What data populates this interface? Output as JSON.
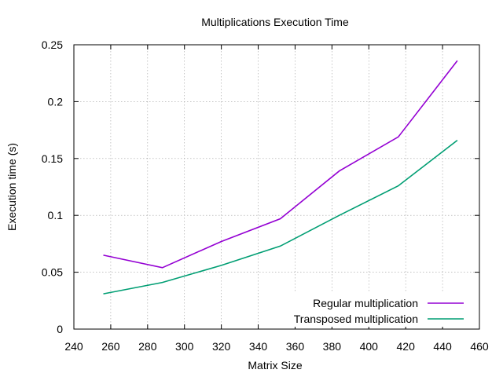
{
  "chart_data": {
    "type": "line",
    "title": "Multiplications Execution Time",
    "xlabel": "Matrix Size",
    "ylabel": "Execution time (s)",
    "xlim": [
      240,
      460
    ],
    "ylim": [
      0,
      0.25
    ],
    "xticks": [
      "240",
      "260",
      "280",
      "300",
      "320",
      "340",
      "360",
      "380",
      "400",
      "420",
      "440",
      "460"
    ],
    "yticks": [
      "0",
      "0.05",
      "0.1",
      "0.15",
      "0.2",
      "0.25"
    ],
    "grid": true,
    "legend_position": "bottom-right",
    "series": [
      {
        "name": "Regular multiplication",
        "color": "#9400d3",
        "x": [
          256,
          288,
          320,
          352,
          384,
          416,
          448
        ],
        "y": [
          0.065,
          0.054,
          0.077,
          0.097,
          0.139,
          0.169,
          0.236
        ]
      },
      {
        "name": "Transposed multiplication",
        "color": "#009e73",
        "x": [
          256,
          288,
          320,
          352,
          384,
          416,
          448
        ],
        "y": [
          0.031,
          0.041,
          0.056,
          0.073,
          0.1,
          0.126,
          0.166
        ]
      }
    ]
  }
}
